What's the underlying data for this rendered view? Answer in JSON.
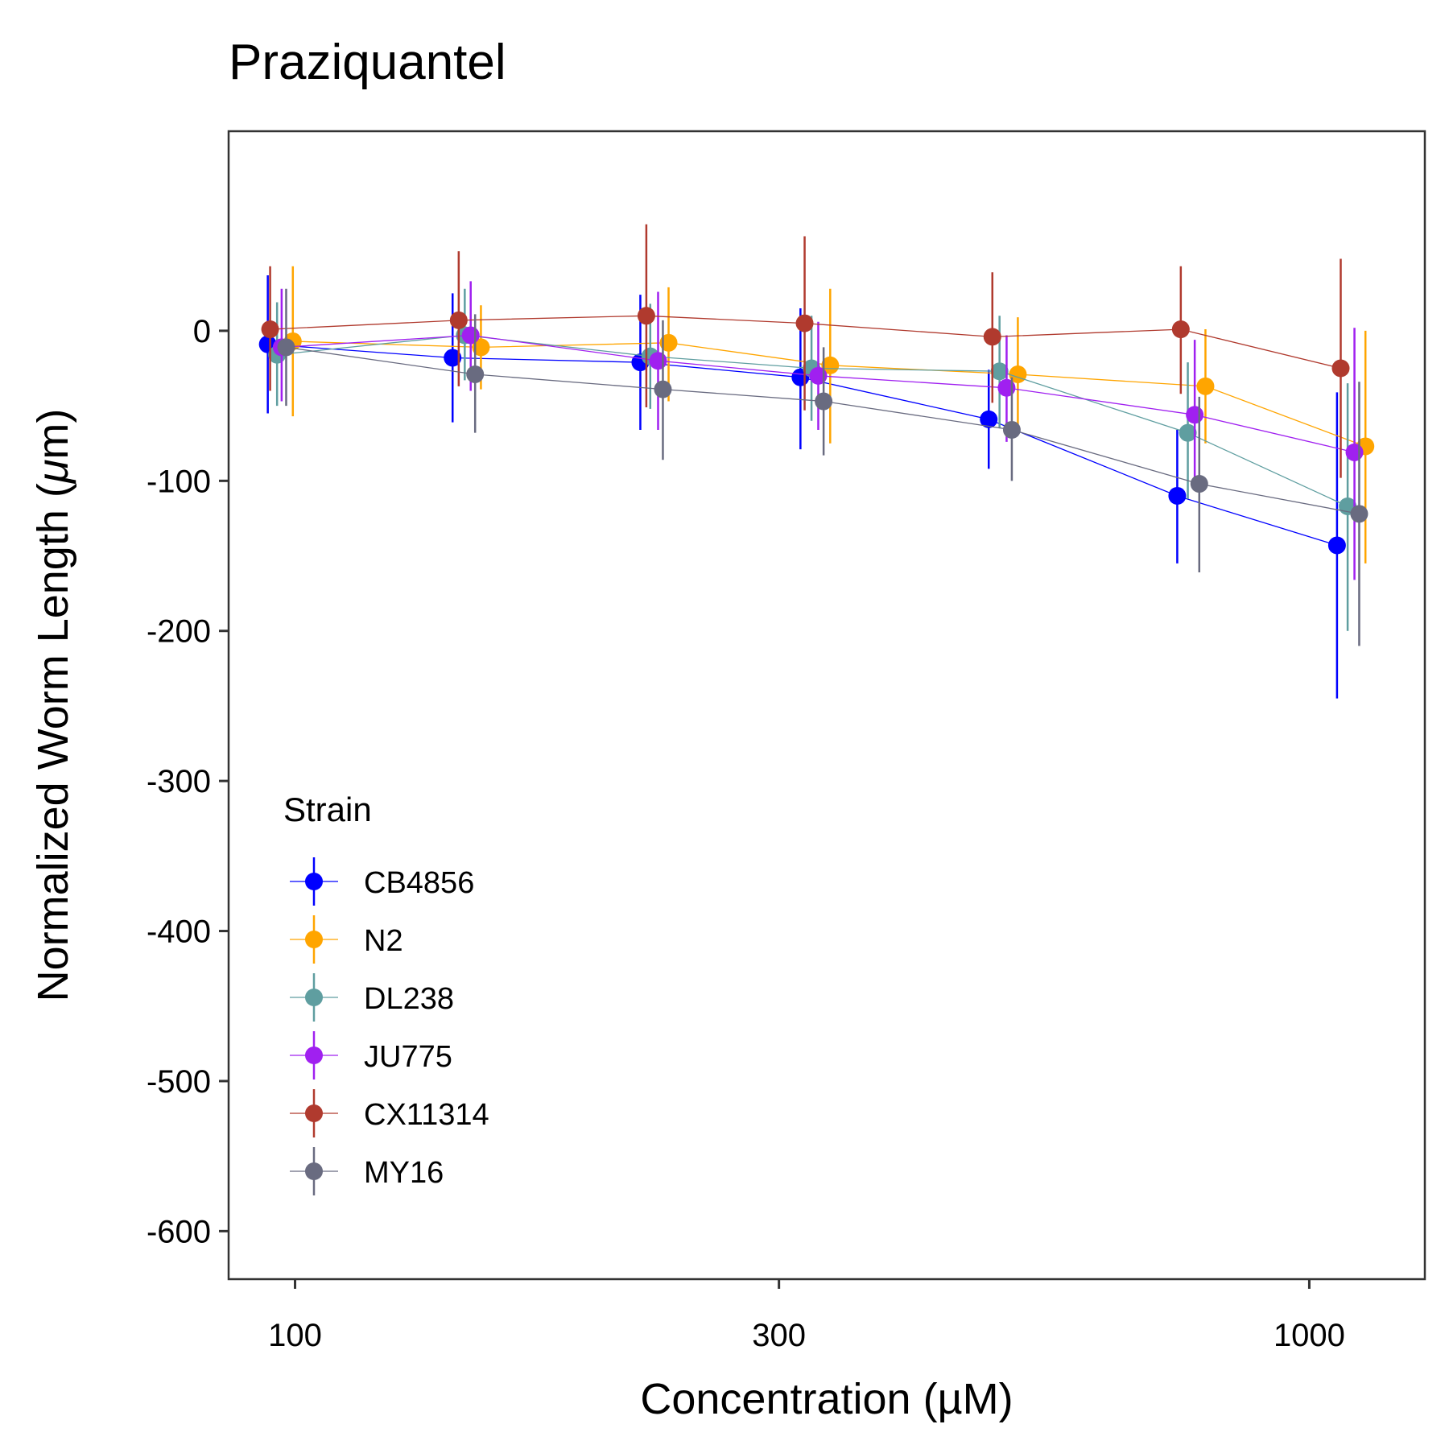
{
  "chart_data": {
    "type": "scatter",
    "title": "Praziquantel",
    "xlabel": "Concentration (µM)",
    "ylabel_main": "Normalized Worm Length (",
    "ylabel_mu": "μ",
    "ylabel_end": "m)",
    "x_scale": "log",
    "xlim": [
      86,
      1300
    ],
    "ylim": [
      -632,
      133
    ],
    "x_ticks": [
      {
        "value": 100,
        "label": "100"
      },
      {
        "value": 300,
        "label": "300"
      },
      {
        "value": 1000,
        "label": "1000"
      }
    ],
    "y_ticks": [
      {
        "value": 0,
        "label": "0"
      },
      {
        "value": -100,
        "label": "-100"
      },
      {
        "value": -200,
        "label": "-200"
      },
      {
        "value": -300,
        "label": "-300"
      },
      {
        "value": -400,
        "label": "-400"
      },
      {
        "value": -500,
        "label": "-500"
      },
      {
        "value": -600,
        "label": "-600"
      }
    ],
    "grid": false,
    "legend_title": "Strain",
    "legend_position": "bottom-left inside",
    "series": [
      {
        "name": "CB4856",
        "color": "#0000ff",
        "points": [
          {
            "x": 94,
            "y": -9,
            "ylo": -55,
            "yhi": 37
          },
          {
            "x": 143,
            "y": -18,
            "ylo": -61,
            "yhi": 25
          },
          {
            "x": 219,
            "y": -21,
            "ylo": -66,
            "yhi": 24
          },
          {
            "x": 315,
            "y": -31,
            "ylo": -79,
            "yhi": 15
          },
          {
            "x": 483,
            "y": -59,
            "ylo": -92,
            "yhi": -26
          },
          {
            "x": 741,
            "y": -110,
            "ylo": -155,
            "yhi": -66
          },
          {
            "x": 1065,
            "y": -143,
            "ylo": -245,
            "yhi": -41
          }
        ]
      },
      {
        "name": "N2",
        "color": "#ffa500",
        "points": [
          {
            "x": 99.5,
            "y": -7,
            "ylo": -57,
            "yhi": 43
          },
          {
            "x": 152.5,
            "y": -11,
            "ylo": -39,
            "yhi": 17
          },
          {
            "x": 233.5,
            "y": -8,
            "ylo": -47,
            "yhi": 29
          },
          {
            "x": 337,
            "y": -23,
            "ylo": -75,
            "yhi": 28
          },
          {
            "x": 516,
            "y": -29,
            "ylo": -68,
            "yhi": 9
          },
          {
            "x": 790,
            "y": -37,
            "ylo": -75,
            "yhi": 1
          },
          {
            "x": 1136,
            "y": -77,
            "ylo": -155,
            "yhi": 0
          }
        ]
      },
      {
        "name": "DL238",
        "color": "#5f9ea0",
        "points": [
          {
            "x": 96,
            "y": -16,
            "ylo": -50,
            "yhi": 19
          },
          {
            "x": 147,
            "y": -3,
            "ylo": -33,
            "yhi": 28
          },
          {
            "x": 224,
            "y": -17,
            "ylo": -52,
            "yhi": 18
          },
          {
            "x": 323,
            "y": -25,
            "ylo": -60,
            "yhi": 10
          },
          {
            "x": 495,
            "y": -27,
            "ylo": -65,
            "yhi": 10
          },
          {
            "x": 759,
            "y": -68,
            "ylo": -112,
            "yhi": -21
          },
          {
            "x": 1091,
            "y": -117,
            "ylo": -200,
            "yhi": -35
          }
        ]
      },
      {
        "name": "JU775",
        "color": "#a020f0",
        "points": [
          {
            "x": 97,
            "y": -11,
            "ylo": -47,
            "yhi": 28
          },
          {
            "x": 149,
            "y": -3,
            "ylo": -40,
            "yhi": 33
          },
          {
            "x": 228,
            "y": -20,
            "ylo": -66,
            "yhi": 26
          },
          {
            "x": 328,
            "y": -30,
            "ylo": -66,
            "yhi": 6
          },
          {
            "x": 503,
            "y": -38,
            "ylo": -74,
            "yhi": -3
          },
          {
            "x": 771,
            "y": -56,
            "ylo": -106,
            "yhi": -6
          },
          {
            "x": 1108,
            "y": -81,
            "ylo": -166,
            "yhi": 2
          }
        ]
      },
      {
        "name": "CX11314",
        "color": "#b03a2e",
        "points": [
          {
            "x": 94.5,
            "y": 1,
            "ylo": -40,
            "yhi": 43
          },
          {
            "x": 145,
            "y": 7,
            "ylo": -37,
            "yhi": 53
          },
          {
            "x": 222,
            "y": 10,
            "ylo": -51,
            "yhi": 71
          },
          {
            "x": 318,
            "y": 5,
            "ylo": -53,
            "yhi": 63
          },
          {
            "x": 487,
            "y": -4,
            "ylo": -48,
            "yhi": 39
          },
          {
            "x": 747,
            "y": 1,
            "ylo": -42,
            "yhi": 43
          },
          {
            "x": 1074,
            "y": -25,
            "ylo": -98,
            "yhi": 48
          }
        ]
      },
      {
        "name": "MY16",
        "color": "#696b80",
        "points": [
          {
            "x": 98,
            "y": -11,
            "ylo": -50,
            "yhi": 28
          },
          {
            "x": 150.5,
            "y": -29,
            "ylo": -68,
            "yhi": 11
          },
          {
            "x": 230.5,
            "y": -39,
            "ylo": -86,
            "yhi": 7
          },
          {
            "x": 332,
            "y": -47,
            "ylo": -83,
            "yhi": -11
          },
          {
            "x": 509,
            "y": -66,
            "ylo": -100,
            "yhi": -31
          },
          {
            "x": 779,
            "y": -102,
            "ylo": -161,
            "yhi": -44
          },
          {
            "x": 1120,
            "y": -122,
            "ylo": -210,
            "yhi": -34
          }
        ]
      }
    ]
  }
}
